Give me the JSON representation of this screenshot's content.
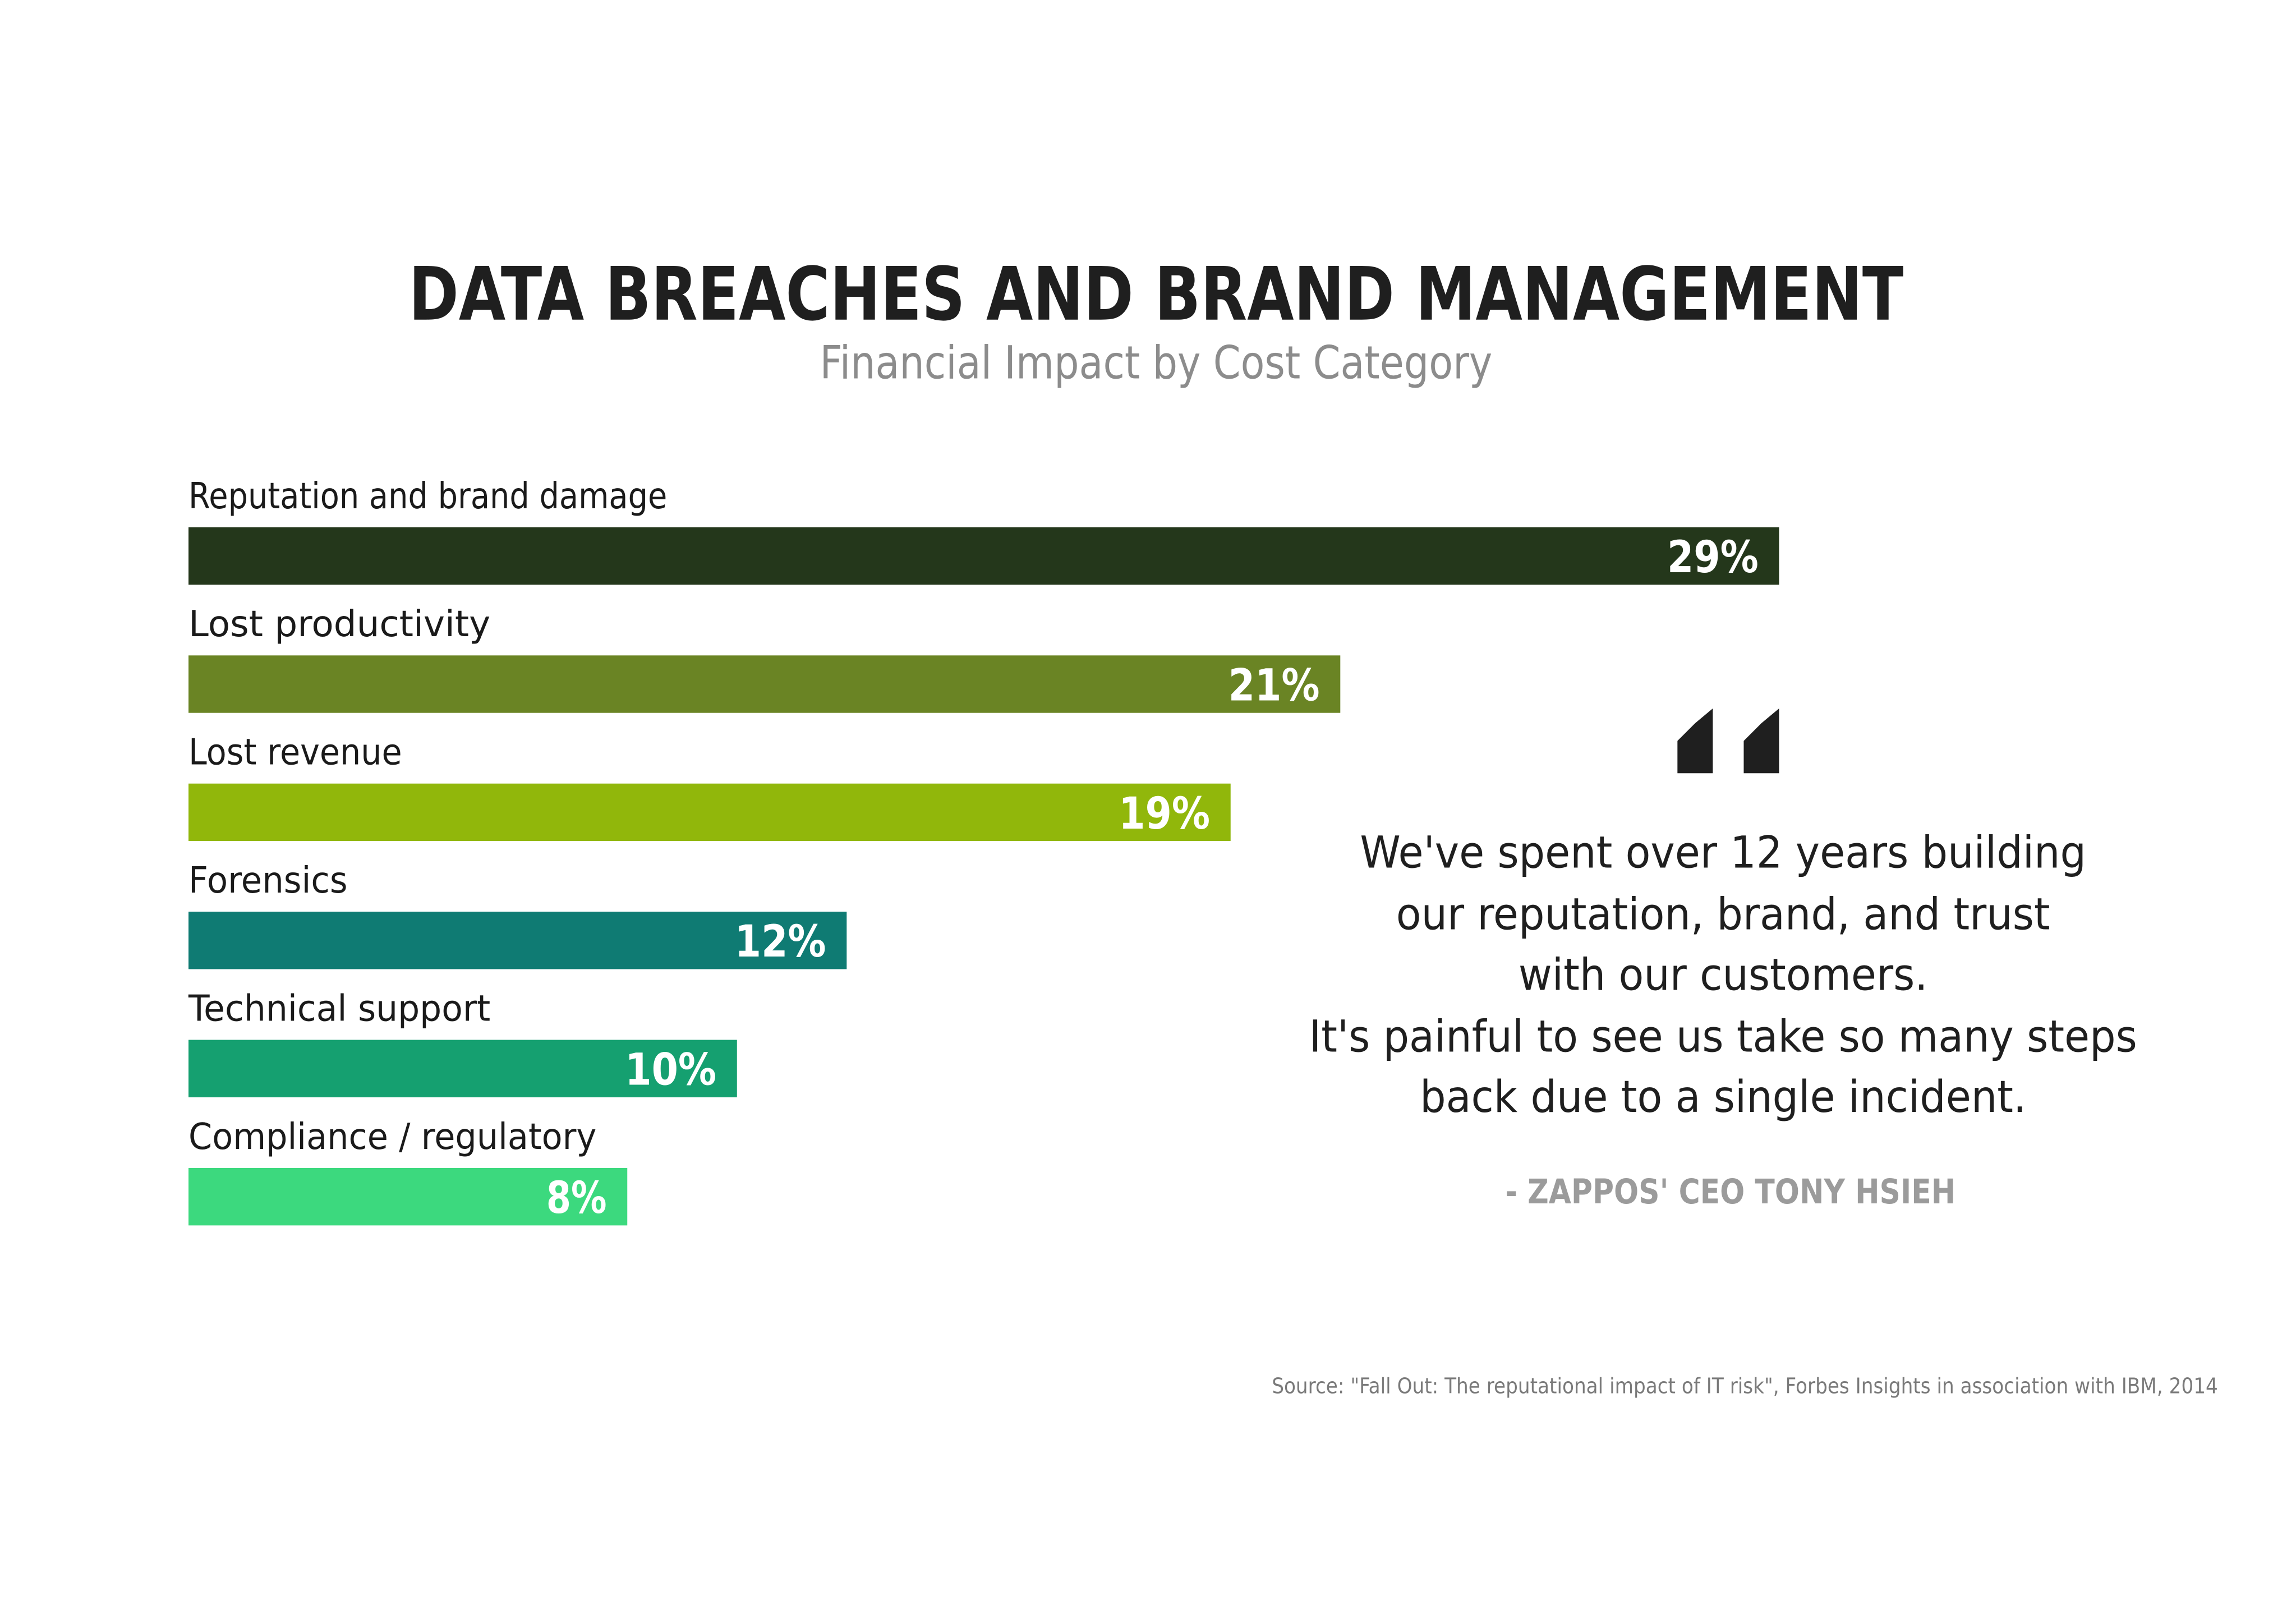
{
  "title": "DATA BREACHES AND BRAND MANAGEMENT",
  "subtitle": "Financial Impact by Cost Category",
  "chart_data": {
    "type": "bar",
    "orientation": "horizontal",
    "title": "DATA BREACHES AND BRAND MANAGEMENT",
    "subtitle": "Financial Impact by Cost Category",
    "categories": [
      "Reputation and brand damage",
      "Lost productivity",
      "Lost revenue",
      "Forensics",
      "Technical support",
      "Compliance / regulatory"
    ],
    "values": [
      29,
      21,
      19,
      12,
      10,
      8
    ],
    "value_labels": [
      "29%",
      "21%",
      "19%",
      "12%",
      "10%",
      "8%"
    ],
    "colors": [
      "#24371b",
      "#6a8424",
      "#91b70b",
      "#0f7b73",
      "#15a070",
      "#3cd97e"
    ],
    "unit": "%",
    "xlim": [
      0,
      29
    ],
    "grid": false,
    "legend": "none",
    "xlabel": "",
    "ylabel": ""
  },
  "quote": {
    "lines": [
      "We've spent over 12 years building",
      "our reputation, brand, and trust",
      "with our customers.",
      "It's painful to see us take so many steps",
      "back due to a single incident."
    ],
    "attribution": "- ZAPPOS' CEO TONY HSIEH",
    "mark_icon": "opening-quote-icon",
    "mark_color": "#1f1f1f"
  },
  "source": "Source: \"Fall Out: The reputational impact of IT risk\", Forbes Insights in association with IBM, 2014"
}
